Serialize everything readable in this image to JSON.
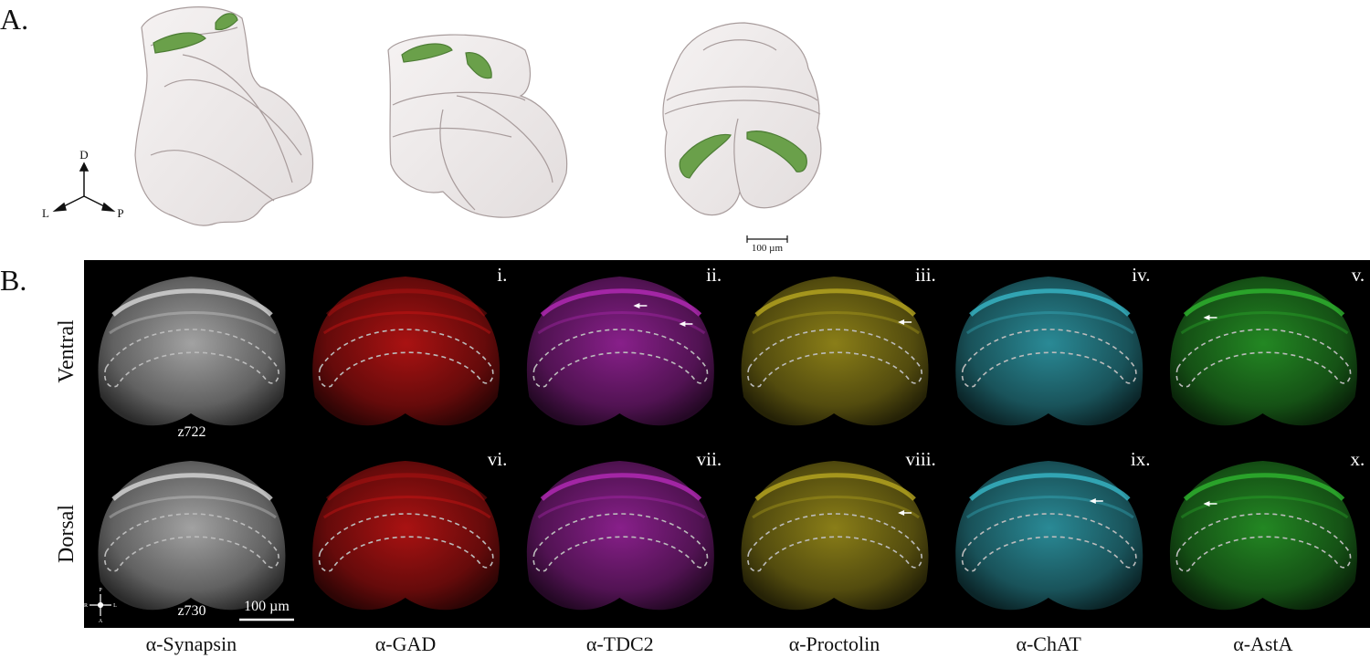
{
  "panel_a": {
    "label": "A.",
    "axes": {
      "d": "D",
      "l": "L",
      "p": "P"
    },
    "scale_bar": "100 µm"
  },
  "panel_b": {
    "label": "B.",
    "rows": [
      {
        "label": "Ventral",
        "z": "z722",
        "panels": [
          "i.",
          "ii.",
          "iii.",
          "iv.",
          "v."
        ]
      },
      {
        "label": "Dorsal",
        "z": "z730",
        "panels": [
          "vi.",
          "vii.",
          "viii.",
          "ix.",
          "x."
        ]
      }
    ],
    "scale_bar": "100 µm",
    "orientation": {
      "p": "P",
      "r": "R",
      "l": "L",
      "a": "A"
    },
    "columns": [
      "α-Synapsin",
      "α-GAD",
      "α-TDC2",
      "α-Proctolin",
      "α-ChAT",
      "α-AstA"
    ]
  }
}
